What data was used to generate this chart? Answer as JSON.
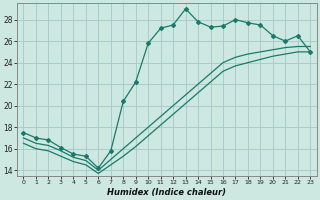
{
  "xlabel": "Humidex (Indice chaleur)",
  "background_color": "#cce8e0",
  "grid_color": "#aacccc",
  "line_color": "#1a7a6a",
  "xlim": [
    -0.5,
    23.5
  ],
  "ylim": [
    13.5,
    29.5
  ],
  "xticks": [
    0,
    1,
    2,
    3,
    4,
    5,
    6,
    7,
    8,
    9,
    10,
    11,
    12,
    13,
    14,
    15,
    16,
    17,
    18,
    19,
    20,
    21,
    22,
    23
  ],
  "yticks": [
    14,
    16,
    18,
    20,
    22,
    24,
    26,
    28
  ],
  "line1_x": [
    0,
    1,
    2,
    3,
    4,
    5,
    6,
    7,
    8,
    9,
    10,
    11,
    12,
    13,
    14,
    15,
    16,
    17,
    18,
    19,
    20,
    21,
    22,
    23
  ],
  "line1_y": [
    17.5,
    17.0,
    16.8,
    16.1,
    15.5,
    15.3,
    14.2,
    15.8,
    20.4,
    22.2,
    25.8,
    27.2,
    27.5,
    29.0,
    27.8,
    27.3,
    27.4,
    28.0,
    27.7,
    27.5,
    26.5,
    26.0,
    26.5,
    25.0
  ],
  "line2_x": [
    0,
    1,
    2,
    3,
    4,
    5,
    6,
    7,
    8,
    9,
    10,
    11,
    12,
    13,
    14,
    15,
    16,
    17,
    18,
    19,
    20,
    21,
    22,
    23
  ],
  "line2_y": [
    17.0,
    16.5,
    16.3,
    15.8,
    15.2,
    14.9,
    14.0,
    15.0,
    16.0,
    17.0,
    18.0,
    19.0,
    20.0,
    21.0,
    22.0,
    23.0,
    24.0,
    24.5,
    24.8,
    25.0,
    25.2,
    25.4,
    25.5,
    25.5
  ],
  "line3_x": [
    0,
    1,
    2,
    3,
    4,
    5,
    6,
    7,
    8,
    9,
    10,
    11,
    12,
    13,
    14,
    15,
    16,
    17,
    18,
    19,
    20,
    21,
    22,
    23
  ],
  "line3_y": [
    16.5,
    16.0,
    15.8,
    15.3,
    14.8,
    14.5,
    13.7,
    14.5,
    15.3,
    16.2,
    17.2,
    18.2,
    19.2,
    20.2,
    21.2,
    22.2,
    23.2,
    23.7,
    24.0,
    24.3,
    24.6,
    24.8,
    25.0,
    25.0
  ]
}
